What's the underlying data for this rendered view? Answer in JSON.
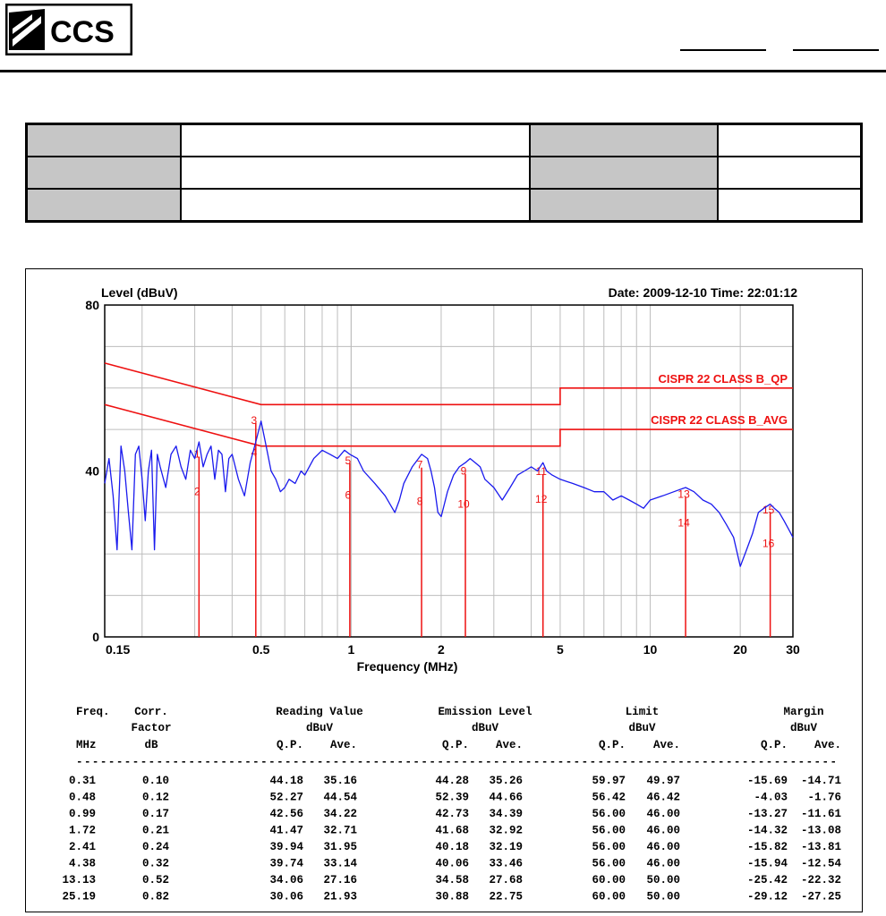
{
  "logo": {
    "text": "CCS"
  },
  "chart_data": {
    "type": "line",
    "ylabel": "Level (dBuV)",
    "xlabel": "Frequency (MHz)",
    "date_label": "Date: 2009-12-10  Time: 22:01:12",
    "x_scale": "log",
    "xlim": [
      0.15,
      30
    ],
    "ylim": [
      0,
      80
    ],
    "y_ticks": [
      0,
      40,
      80
    ],
    "x_ticks": [
      {
        "v": 0.15,
        "label": "0.15"
      },
      {
        "v": 0.5,
        "label": "0.5"
      },
      {
        "v": 1,
        "label": "1"
      },
      {
        "v": 2,
        "label": "2"
      },
      {
        "v": 5,
        "label": "5"
      },
      {
        "v": 10,
        "label": "10"
      },
      {
        "v": 20,
        "label": "20"
      },
      {
        "v": 30,
        "label": "30"
      }
    ],
    "grid": true,
    "series": [
      {
        "name": "",
        "color": "#1a1aee",
        "x": [
          0.15,
          0.155,
          0.16,
          0.165,
          0.17,
          0.175,
          0.18,
          0.185,
          0.19,
          0.195,
          0.2,
          0.205,
          0.21,
          0.215,
          0.22,
          0.225,
          0.23,
          0.24,
          0.25,
          0.26,
          0.27,
          0.28,
          0.29,
          0.3,
          0.31,
          0.32,
          0.33,
          0.34,
          0.35,
          0.36,
          0.37,
          0.38,
          0.39,
          0.4,
          0.42,
          0.44,
          0.46,
          0.48,
          0.5,
          0.52,
          0.54,
          0.56,
          0.58,
          0.6,
          0.62,
          0.65,
          0.68,
          0.7,
          0.75,
          0.8,
          0.85,
          0.9,
          0.95,
          0.99,
          1.05,
          1.1,
          1.2,
          1.3,
          1.4,
          1.45,
          1.5,
          1.6,
          1.72,
          1.8,
          1.85,
          1.9,
          1.95,
          2.0,
          2.05,
          2.1,
          2.2,
          2.3,
          2.41,
          2.5,
          2.6,
          2.7,
          2.8,
          3.0,
          3.2,
          3.4,
          3.6,
          3.8,
          4.0,
          4.2,
          4.38,
          4.5,
          4.7,
          5.0,
          5.5,
          6.0,
          6.5,
          7.0,
          7.5,
          8.0,
          8.5,
          9.0,
          9.5,
          10,
          11,
          12,
          13.13,
          14,
          15,
          16,
          17,
          18,
          19,
          20,
          21,
          22,
          23,
          24,
          25.19,
          26,
          27,
          28,
          29,
          30
        ],
        "y": [
          37,
          43,
          34,
          21,
          46,
          40,
          30,
          21,
          44,
          46,
          38,
          28,
          40,
          45,
          21,
          44,
          41,
          36,
          44,
          46,
          41,
          38,
          45,
          43,
          47,
          41,
          44,
          46,
          38,
          45,
          44,
          35,
          43,
          44,
          38,
          34,
          42,
          47,
          52,
          46,
          40,
          38,
          35,
          36,
          38,
          37,
          40,
          39,
          43,
          45,
          44,
          43,
          45,
          44,
          43,
          40,
          37,
          34,
          30,
          33,
          37,
          41,
          44,
          43,
          40,
          36,
          30,
          29,
          32,
          35,
          39,
          41,
          42,
          43,
          42,
          41,
          38,
          36,
          33,
          36,
          39,
          40,
          41,
          40,
          42,
          40,
          39,
          38,
          37,
          36,
          35,
          35,
          33,
          34,
          33,
          32,
          31,
          33,
          34,
          35,
          36,
          35,
          33,
          32,
          30,
          27,
          24,
          17,
          21,
          25,
          30,
          31,
          32,
          31,
          30,
          28,
          26,
          24
        ]
      }
    ],
    "limits": [
      {
        "name": "CISPR 22 CLASS B_QP",
        "color": "#ee1111",
        "x": [
          0.15,
          0.5,
          0.5,
          5,
          5,
          30
        ],
        "y": [
          66,
          56,
          56,
          56,
          60,
          60
        ]
      },
      {
        "name": "CISPR 22 CLASS B_AVG",
        "color": "#ee1111",
        "x": [
          0.15,
          0.5,
          0.5,
          5,
          5,
          30
        ],
        "y": [
          56,
          46,
          46,
          46,
          50,
          50
        ]
      }
    ],
    "markers": [
      {
        "n": "1",
        "x": 0.31,
        "y": 44.28
      },
      {
        "n": "2",
        "x": 0.31,
        "y": 35.26
      },
      {
        "n": "3",
        "x": 0.48,
        "y": 52.39
      },
      {
        "n": "4",
        "x": 0.48,
        "y": 44.66
      },
      {
        "n": "5",
        "x": 0.99,
        "y": 42.73
      },
      {
        "n": "6",
        "x": 0.99,
        "y": 34.39
      },
      {
        "n": "7",
        "x": 1.72,
        "y": 41.68
      },
      {
        "n": "8",
        "x": 1.72,
        "y": 32.92
      },
      {
        "n": "9",
        "x": 2.41,
        "y": 40.18
      },
      {
        "n": "10",
        "x": 2.41,
        "y": 32.19
      },
      {
        "n": "11",
        "x": 4.38,
        "y": 40.06
      },
      {
        "n": "12",
        "x": 4.38,
        "y": 33.46
      },
      {
        "n": "13",
        "x": 13.13,
        "y": 34.58
      },
      {
        "n": "14",
        "x": 13.13,
        "y": 27.68
      },
      {
        "n": "15",
        "x": 25.19,
        "y": 30.88
      },
      {
        "n": "16",
        "x": 25.19,
        "y": 22.75
      }
    ]
  },
  "table": {
    "header_rows": [
      [
        "Freq.",
        "Corr.",
        "Reading Value",
        "",
        "Emission Level",
        "",
        "Limit",
        "",
        "Margin",
        ""
      ],
      [
        "",
        "Factor",
        "dBuV",
        "",
        "dBuV",
        "",
        "dBuV",
        "",
        "dBuV",
        ""
      ],
      [
        "MHz",
        "dB",
        "Q.P.",
        "Ave.",
        "Q.P.",
        "Ave.",
        "Q.P.",
        "Ave.",
        "Q.P.",
        "Ave."
      ]
    ],
    "separator": "-----------------------------------------------------------------------------------------------",
    "rows": [
      [
        "0.31",
        "0.10",
        "44.18",
        "35.16",
        "44.28",
        "35.26",
        "59.97",
        "49.97",
        "-15.69",
        "-14.71"
      ],
      [
        "0.48",
        "0.12",
        "52.27",
        "44.54",
        "52.39",
        "44.66",
        "56.42",
        "46.42",
        "-4.03",
        "-1.76"
      ],
      [
        "0.99",
        "0.17",
        "42.56",
        "34.22",
        "42.73",
        "34.39",
        "56.00",
        "46.00",
        "-13.27",
        "-11.61"
      ],
      [
        "1.72",
        "0.21",
        "41.47",
        "32.71",
        "41.68",
        "32.92",
        "56.00",
        "46.00",
        "-14.32",
        "-13.08"
      ],
      [
        "2.41",
        "0.24",
        "39.94",
        "31.95",
        "40.18",
        "32.19",
        "56.00",
        "46.00",
        "-15.82",
        "-13.81"
      ],
      [
        "4.38",
        "0.32",
        "39.74",
        "33.14",
        "40.06",
        "33.46",
        "56.00",
        "46.00",
        "-15.94",
        "-12.54"
      ],
      [
        "13.13",
        "0.52",
        "34.06",
        "27.16",
        "34.58",
        "27.68",
        "60.00",
        "50.00",
        "-25.42",
        "-22.32"
      ],
      [
        "25.19",
        "0.82",
        "30.06",
        "21.93",
        "30.88",
        "22.75",
        "60.00",
        "50.00",
        "-29.12",
        "-27.25"
      ]
    ]
  }
}
